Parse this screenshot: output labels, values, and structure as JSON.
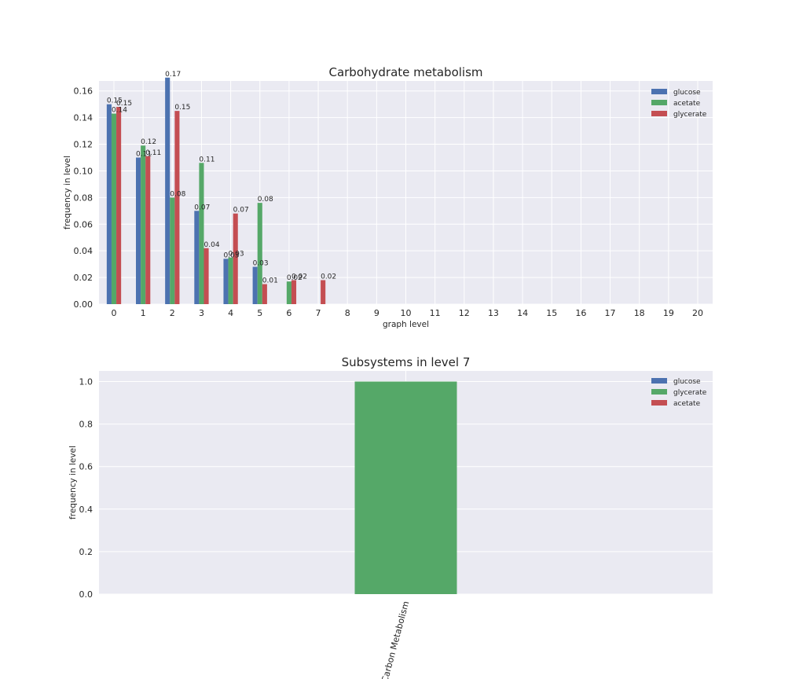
{
  "colors": {
    "glucose": "#4C72B0",
    "acetate": "#55A868",
    "glycerate": "#C44E52",
    "plot_bg": "#EAEAF2",
    "grid": "#FFFFFF"
  },
  "chart_data": [
    {
      "type": "bar",
      "title": "Carbohydrate metabolism",
      "xlabel": "graph level",
      "ylabel": "frequency in level",
      "categories": [
        "0",
        "1",
        "2",
        "3",
        "4",
        "5",
        "6",
        "7",
        "8",
        "9",
        "10",
        "11",
        "12",
        "13",
        "14",
        "15",
        "16",
        "17",
        "18",
        "19",
        "20"
      ],
      "ylim": [
        0,
        0.1675
      ],
      "yticks": [
        "0.00",
        "0.02",
        "0.04",
        "0.06",
        "0.08",
        "0.10",
        "0.12",
        "0.14",
        "0.16"
      ],
      "grid": true,
      "legend_position": "top-right",
      "series": [
        {
          "name": "glucose",
          "color_key": "glucose",
          "values": [
            0.15,
            0.11,
            0.17,
            0.07,
            0.034,
            0.028,
            0,
            0,
            0,
            0,
            0,
            0,
            0,
            0,
            0,
            0,
            0,
            0,
            0,
            0,
            0
          ],
          "labels": [
            "0.15",
            "0.11",
            "0.17",
            "0.07",
            "0.03",
            "0.03",
            "",
            "",
            "",
            "",
            "",
            "",
            "",
            "",
            "",
            "",
            "",
            "",
            "",
            "",
            ""
          ]
        },
        {
          "name": "acetate",
          "color_key": "acetate",
          "values": [
            0.143,
            0.119,
            0.08,
            0.106,
            0.035,
            0.076,
            0.017,
            0,
            0,
            0,
            0,
            0,
            0,
            0,
            0,
            0,
            0,
            0,
            0,
            0,
            0
          ],
          "labels": [
            "0.14",
            "0.12",
            "0.08",
            "0.11",
            "0.03",
            "0.08",
            "0.02",
            "",
            "",
            "",
            "",
            "",
            "",
            "",
            "",
            "",
            "",
            "",
            "",
            "",
            ""
          ]
        },
        {
          "name": "glycerate",
          "color_key": "glycerate",
          "values": [
            0.148,
            0.111,
            0.145,
            0.042,
            0.068,
            0.015,
            0.018,
            0.018,
            0,
            0,
            0,
            0,
            0,
            0,
            0,
            0,
            0,
            0,
            0,
            0,
            0
          ],
          "labels": [
            "0.15",
            "0.11",
            "0.15",
            "0.04",
            "0.07",
            "0.01",
            "0.02",
            "0.02",
            "",
            "",
            "",
            "",
            "",
            "",
            "",
            "",
            "",
            "",
            "",
            "",
            ""
          ]
        }
      ]
    },
    {
      "type": "bar",
      "title": "Subsystems in level 7",
      "xlabel": "",
      "ylabel": "frequency in level",
      "categories": [
        "Carbon Metabolism"
      ],
      "ylim": [
        0,
        1.05
      ],
      "yticks": [
        "0.0",
        "0.2",
        "0.4",
        "0.6",
        "0.8",
        "1.0"
      ],
      "grid": true,
      "legend_position": "top-right",
      "series": [
        {
          "name": "glucose",
          "color_key": "glucose",
          "values": [
            0
          ]
        },
        {
          "name": "glycerate",
          "color_key": "acetate",
          "values": [
            1.0
          ]
        },
        {
          "name": "acetate",
          "color_key": "glycerate",
          "values": [
            0
          ]
        }
      ]
    }
  ]
}
